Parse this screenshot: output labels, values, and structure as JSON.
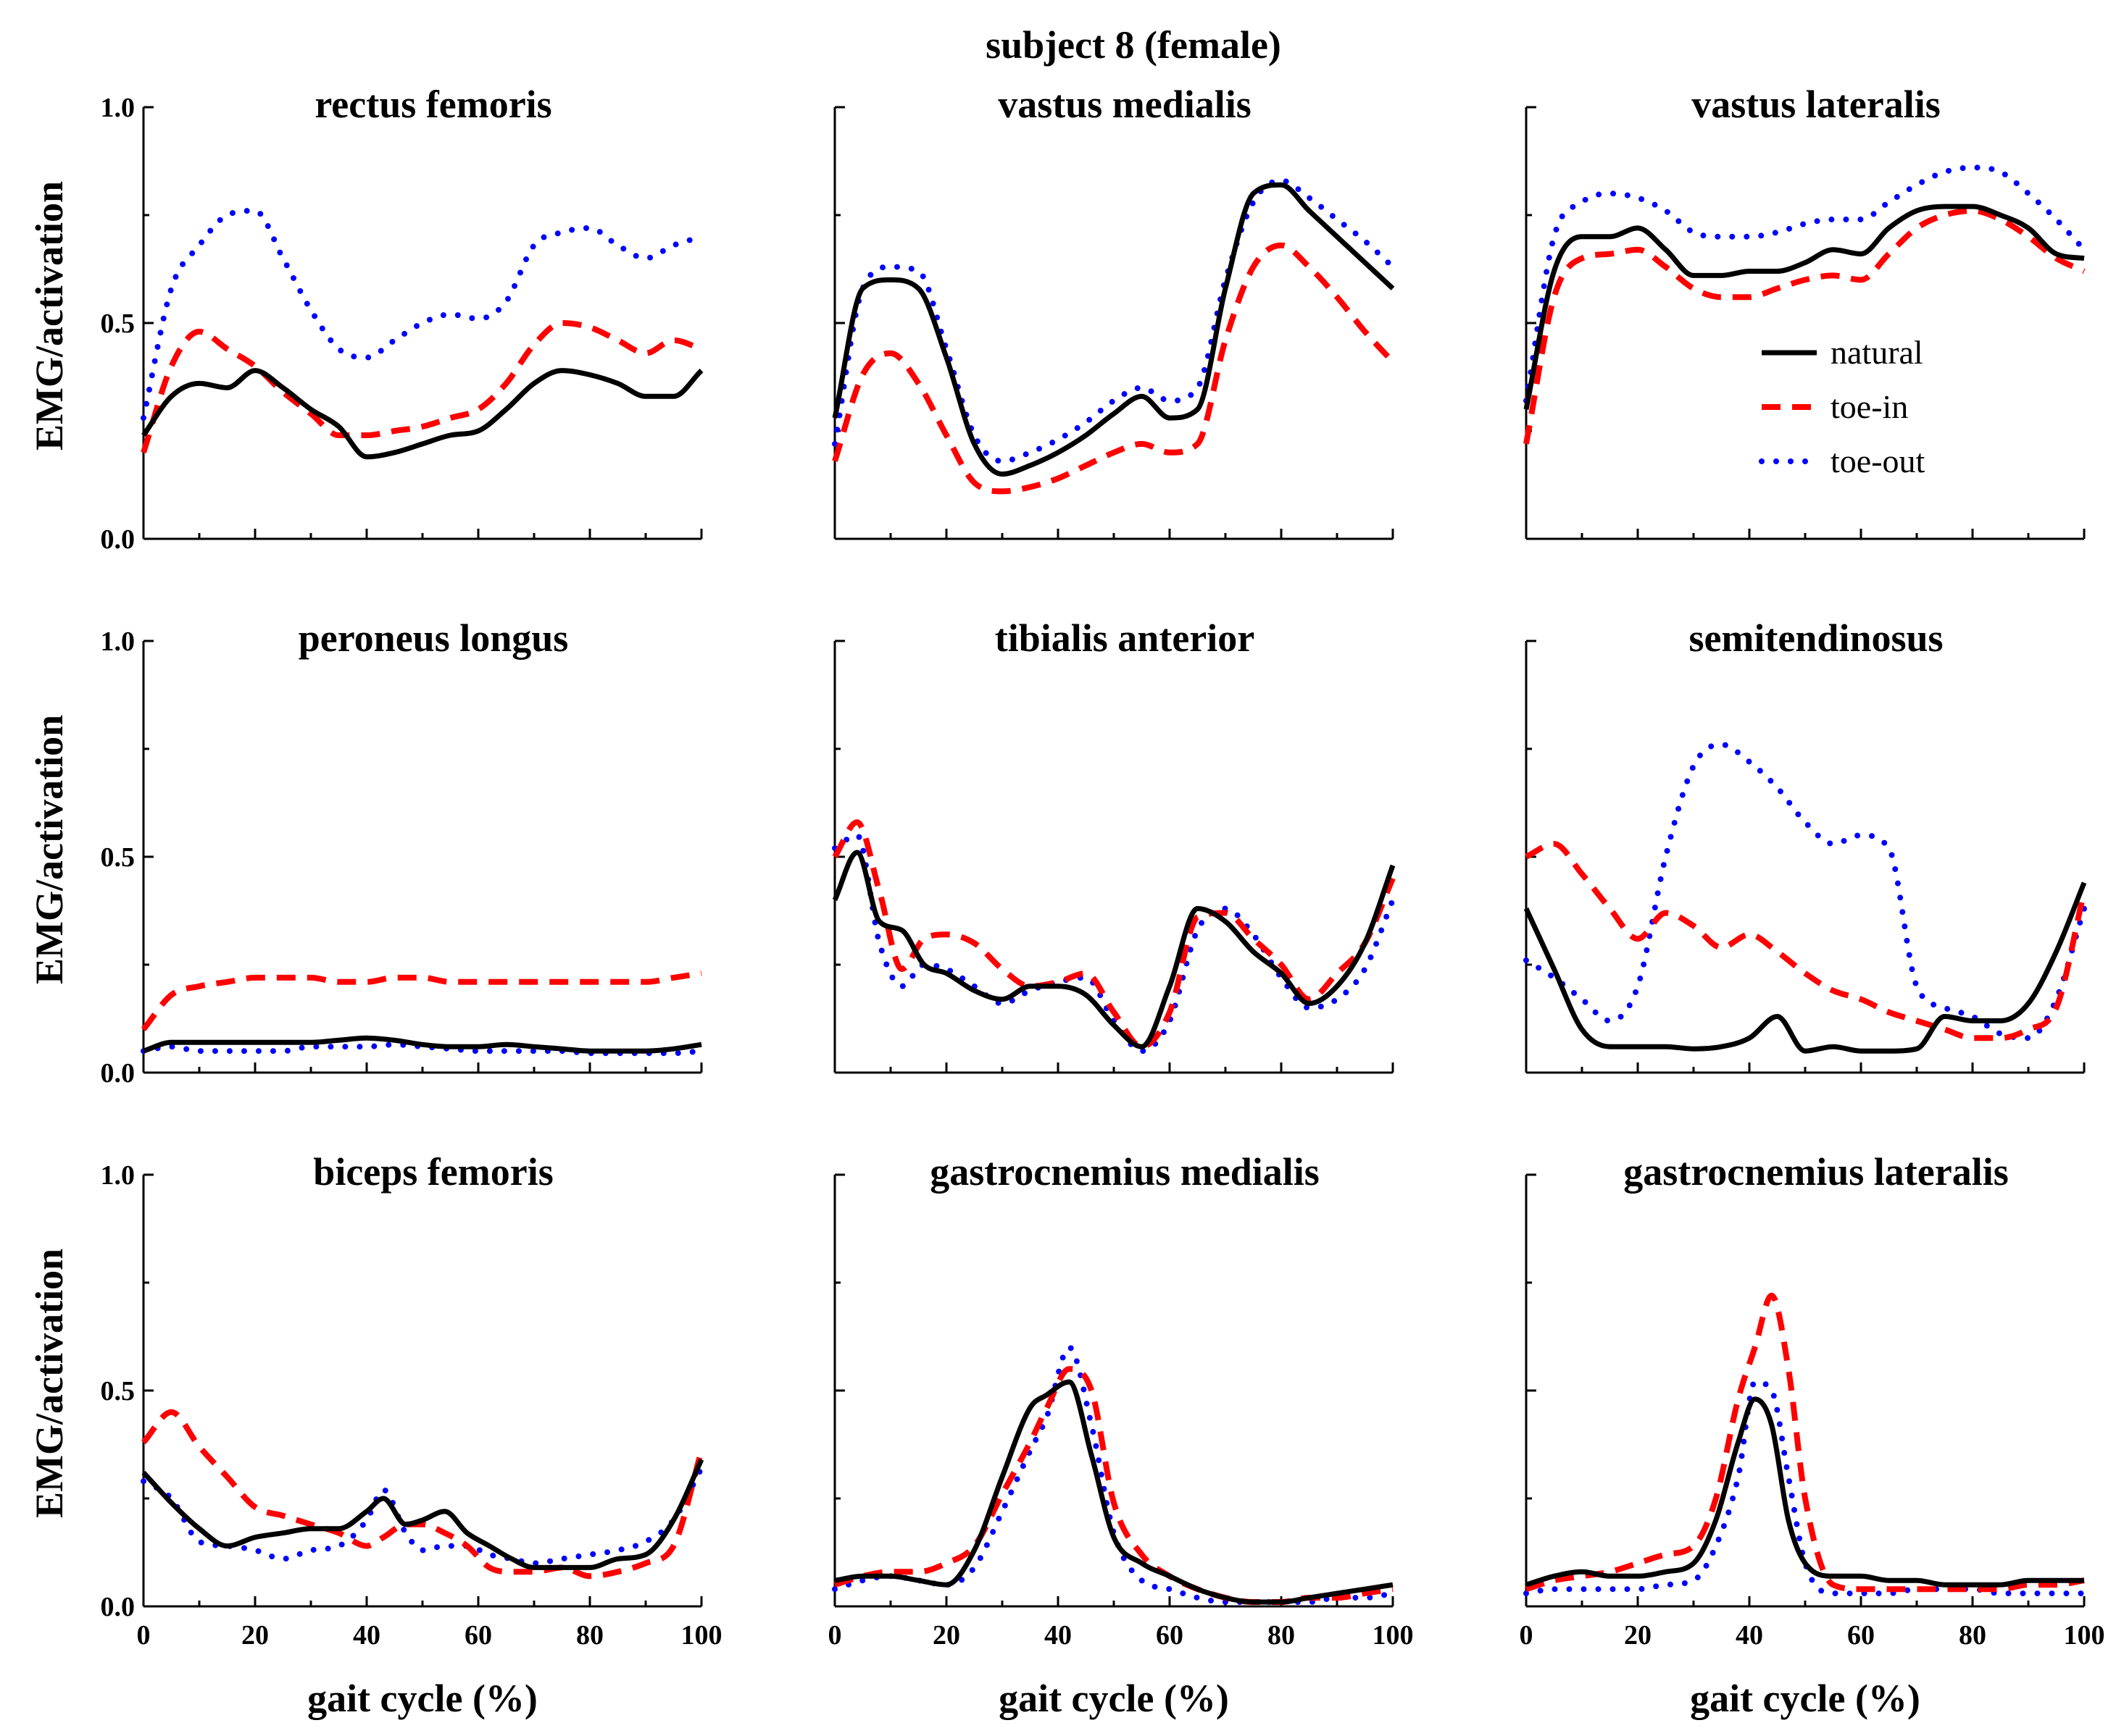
{
  "figure_title": "subject 8 (female)",
  "y_label": "EMG/activation",
  "x_label": "gait cycle (%)",
  "legend": {
    "placement": "top-right panel (vastus lateralis)",
    "items": [
      {
        "series": "natural",
        "label": "natural"
      },
      {
        "series": "toe-in",
        "label": "toe-in"
      },
      {
        "series": "toe-out",
        "label": "toe-out"
      }
    ]
  },
  "series_styles": {
    "natural": {
      "color": "#000000",
      "dash": "solid"
    },
    "toe-in": {
      "color": "#ff0000",
      "dash": "dashed"
    },
    "toe-out": {
      "color": "#0000ff",
      "dash": "dotted"
    }
  },
  "y_tick_labels": [
    "0.0",
    "0.5",
    "1.0"
  ],
  "x_tick_labels": [
    "0",
    "20",
    "40",
    "60",
    "80",
    "100"
  ],
  "chart_data": [
    {
      "type": "line",
      "title": "rectus femoris",
      "xlabel": "",
      "ylabel": "EMG/activation",
      "xlim": [
        0,
        100
      ],
      "ylim": [
        0,
        1
      ],
      "show_y_ticklabels": true,
      "show_x_ticklabels": false,
      "x": [
        0,
        5,
        10,
        15,
        20,
        25,
        30,
        35,
        40,
        45,
        50,
        55,
        60,
        65,
        70,
        75,
        80,
        85,
        90,
        95,
        100
      ],
      "series": [
        {
          "name": "natural",
          "values": [
            0.24,
            0.33,
            0.36,
            0.35,
            0.39,
            0.35,
            0.3,
            0.26,
            0.19,
            0.2,
            0.22,
            0.24,
            0.25,
            0.3,
            0.36,
            0.39,
            0.38,
            0.36,
            0.33,
            0.33,
            0.39
          ]
        },
        {
          "name": "toe-in",
          "values": [
            0.2,
            0.4,
            0.48,
            0.44,
            0.4,
            0.34,
            0.29,
            0.24,
            0.24,
            0.25,
            0.26,
            0.28,
            0.3,
            0.36,
            0.45,
            0.5,
            0.49,
            0.46,
            0.43,
            0.46,
            0.44
          ]
        },
        {
          "name": "toe-out",
          "values": [
            0.28,
            0.58,
            0.68,
            0.75,
            0.76,
            0.65,
            0.53,
            0.44,
            0.42,
            0.46,
            0.5,
            0.52,
            0.51,
            0.55,
            0.68,
            0.71,
            0.72,
            0.68,
            0.65,
            0.68,
            0.7
          ]
        }
      ]
    },
    {
      "type": "line",
      "title": "vastus medialis",
      "xlabel": "",
      "ylabel": "",
      "xlim": [
        0,
        100
      ],
      "ylim": [
        0,
        1
      ],
      "show_y_ticklabels": false,
      "show_x_ticklabels": false,
      "x": [
        0,
        5,
        10,
        15,
        20,
        25,
        30,
        35,
        40,
        45,
        50,
        55,
        60,
        65,
        70,
        75,
        80,
        85,
        90,
        95,
        100
      ],
      "series": [
        {
          "name": "natural",
          "values": [
            0.28,
            0.58,
            0.6,
            0.58,
            0.42,
            0.22,
            0.15,
            0.17,
            0.2,
            0.24,
            0.29,
            0.33,
            0.28,
            0.3,
            0.58,
            0.8,
            0.82,
            0.76,
            0.7,
            0.64,
            0.58
          ]
        },
        {
          "name": "toe-in",
          "values": [
            0.18,
            0.38,
            0.43,
            0.36,
            0.24,
            0.13,
            0.11,
            0.12,
            0.14,
            0.17,
            0.2,
            0.22,
            0.2,
            0.22,
            0.46,
            0.63,
            0.68,
            0.63,
            0.56,
            0.48,
            0.41
          ]
        },
        {
          "name": "toe-out",
          "values": [
            0.22,
            0.58,
            0.63,
            0.62,
            0.44,
            0.24,
            0.18,
            0.2,
            0.23,
            0.27,
            0.32,
            0.35,
            0.32,
            0.35,
            0.6,
            0.78,
            0.83,
            0.79,
            0.74,
            0.69,
            0.63
          ]
        }
      ]
    },
    {
      "type": "line",
      "title": "vastus lateralis",
      "xlabel": "",
      "ylabel": "",
      "xlim": [
        0,
        100
      ],
      "ylim": [
        0,
        1
      ],
      "show_y_ticklabels": false,
      "show_x_ticklabels": false,
      "x": [
        0,
        5,
        10,
        15,
        20,
        25,
        30,
        35,
        40,
        45,
        50,
        55,
        60,
        65,
        70,
        75,
        80,
        85,
        90,
        95,
        100
      ],
      "series": [
        {
          "name": "natural",
          "values": [
            0.3,
            0.62,
            0.7,
            0.7,
            0.72,
            0.67,
            0.61,
            0.61,
            0.62,
            0.62,
            0.64,
            0.67,
            0.66,
            0.72,
            0.76,
            0.77,
            0.77,
            0.75,
            0.72,
            0.66,
            0.65
          ]
        },
        {
          "name": "toe-in",
          "values": [
            0.22,
            0.56,
            0.65,
            0.66,
            0.67,
            0.63,
            0.58,
            0.56,
            0.56,
            0.58,
            0.6,
            0.61,
            0.6,
            0.66,
            0.72,
            0.75,
            0.76,
            0.74,
            0.7,
            0.65,
            0.62
          ]
        },
        {
          "name": "toe-out",
          "values": [
            0.32,
            0.7,
            0.78,
            0.8,
            0.79,
            0.76,
            0.71,
            0.7,
            0.7,
            0.71,
            0.73,
            0.74,
            0.74,
            0.78,
            0.82,
            0.85,
            0.86,
            0.85,
            0.8,
            0.74,
            0.67
          ]
        }
      ]
    },
    {
      "type": "line",
      "title": "peroneus longus",
      "xlabel": "",
      "ylabel": "EMG/activation",
      "xlim": [
        0,
        100
      ],
      "ylim": [
        0,
        1
      ],
      "show_y_ticklabels": true,
      "show_x_ticklabels": false,
      "x": [
        0,
        5,
        10,
        15,
        20,
        25,
        30,
        35,
        40,
        45,
        50,
        55,
        60,
        65,
        70,
        75,
        80,
        85,
        90,
        95,
        100
      ],
      "series": [
        {
          "name": "natural",
          "values": [
            0.05,
            0.07,
            0.07,
            0.07,
            0.07,
            0.07,
            0.07,
            0.075,
            0.08,
            0.075,
            0.065,
            0.06,
            0.06,
            0.065,
            0.06,
            0.055,
            0.05,
            0.05,
            0.05,
            0.055,
            0.065
          ]
        },
        {
          "name": "toe-in",
          "values": [
            0.1,
            0.18,
            0.2,
            0.21,
            0.22,
            0.22,
            0.22,
            0.21,
            0.21,
            0.22,
            0.22,
            0.21,
            0.21,
            0.21,
            0.21,
            0.21,
            0.21,
            0.21,
            0.21,
            0.22,
            0.23
          ]
        },
        {
          "name": "toe-out",
          "values": [
            0.05,
            0.06,
            0.05,
            0.05,
            0.05,
            0.05,
            0.06,
            0.06,
            0.06,
            0.065,
            0.06,
            0.055,
            0.05,
            0.05,
            0.05,
            0.05,
            0.045,
            0.045,
            0.045,
            0.045,
            0.05
          ]
        }
      ]
    },
    {
      "type": "line",
      "title": "tibialis anterior",
      "xlabel": "",
      "ylabel": "",
      "xlim": [
        0,
        100
      ],
      "ylim": [
        0,
        1
      ],
      "show_y_ticklabels": false,
      "show_x_ticklabels": false,
      "x": [
        0,
        4,
        8,
        12,
        16,
        20,
        25,
        30,
        35,
        40,
        45,
        50,
        55,
        60,
        65,
        70,
        75,
        80,
        85,
        90,
        95,
        100
      ],
      "series": [
        {
          "name": "natural",
          "values": [
            0.4,
            0.51,
            0.35,
            0.33,
            0.25,
            0.23,
            0.19,
            0.17,
            0.2,
            0.2,
            0.18,
            0.11,
            0.06,
            0.2,
            0.38,
            0.35,
            0.28,
            0.23,
            0.16,
            0.2,
            0.3,
            0.48
          ]
        },
        {
          "name": "toe-in",
          "values": [
            0.5,
            0.58,
            0.42,
            0.24,
            0.31,
            0.32,
            0.3,
            0.24,
            0.2,
            0.21,
            0.23,
            0.14,
            0.06,
            0.14,
            0.36,
            0.37,
            0.31,
            0.25,
            0.17,
            0.23,
            0.3,
            0.45
          ]
        },
        {
          "name": "toe-out",
          "values": [
            0.52,
            0.55,
            0.3,
            0.2,
            0.25,
            0.24,
            0.2,
            0.16,
            0.19,
            0.21,
            0.22,
            0.12,
            0.05,
            0.12,
            0.33,
            0.38,
            0.32,
            0.22,
            0.15,
            0.17,
            0.24,
            0.4
          ]
        }
      ]
    },
    {
      "type": "line",
      "title": "semitendinosus",
      "xlabel": "",
      "ylabel": "",
      "xlim": [
        0,
        100
      ],
      "ylim": [
        0,
        1
      ],
      "show_y_ticklabels": false,
      "show_x_ticklabels": false,
      "x": [
        0,
        5,
        10,
        15,
        20,
        25,
        30,
        35,
        40,
        45,
        50,
        55,
        60,
        65,
        70,
        75,
        80,
        85,
        90,
        95,
        100
      ],
      "series": [
        {
          "name": "natural",
          "values": [
            0.38,
            0.24,
            0.1,
            0.06,
            0.06,
            0.06,
            0.055,
            0.06,
            0.08,
            0.13,
            0.05,
            0.06,
            0.05,
            0.05,
            0.055,
            0.13,
            0.12,
            0.12,
            0.16,
            0.28,
            0.44
          ]
        },
        {
          "name": "toe-in",
          "values": [
            0.5,
            0.53,
            0.46,
            0.38,
            0.31,
            0.37,
            0.34,
            0.29,
            0.32,
            0.28,
            0.23,
            0.19,
            0.17,
            0.14,
            0.12,
            0.1,
            0.08,
            0.08,
            0.1,
            0.15,
            0.42
          ]
        },
        {
          "name": "toe-out",
          "values": [
            0.26,
            0.22,
            0.17,
            0.12,
            0.2,
            0.5,
            0.71,
            0.76,
            0.72,
            0.66,
            0.58,
            0.53,
            0.55,
            0.52,
            0.2,
            0.15,
            0.13,
            0.09,
            0.08,
            0.17,
            0.38
          ]
        }
      ]
    },
    {
      "type": "line",
      "title": "biceps femoris",
      "xlabel": "gait cycle (%)",
      "ylabel": "EMG/activation",
      "xlim": [
        0,
        100
      ],
      "ylim": [
        0,
        1
      ],
      "show_y_ticklabels": true,
      "show_x_ticklabels": true,
      "x": [
        0,
        5,
        10,
        15,
        20,
        25,
        30,
        35,
        40,
        43,
        47,
        50,
        54,
        58,
        62,
        66,
        70,
        75,
        80,
        85,
        90,
        95,
        100
      ],
      "series": [
        {
          "name": "natural",
          "values": [
            0.31,
            0.24,
            0.18,
            0.14,
            0.16,
            0.17,
            0.18,
            0.18,
            0.22,
            0.25,
            0.19,
            0.2,
            0.22,
            0.17,
            0.14,
            0.11,
            0.09,
            0.09,
            0.09,
            0.11,
            0.12,
            0.2,
            0.34
          ]
        },
        {
          "name": "toe-in",
          "values": [
            0.38,
            0.45,
            0.37,
            0.3,
            0.23,
            0.21,
            0.19,
            0.17,
            0.14,
            0.16,
            0.19,
            0.19,
            0.17,
            0.14,
            0.09,
            0.08,
            0.08,
            0.09,
            0.07,
            0.08,
            0.1,
            0.14,
            0.36
          ]
        },
        {
          "name": "toe-out",
          "values": [
            0.29,
            0.25,
            0.15,
            0.14,
            0.13,
            0.11,
            0.13,
            0.14,
            0.2,
            0.27,
            0.17,
            0.13,
            0.14,
            0.14,
            0.12,
            0.11,
            0.1,
            0.11,
            0.12,
            0.13,
            0.15,
            0.2,
            0.32
          ]
        }
      ]
    },
    {
      "type": "line",
      "title": "gastrocnemius medialis",
      "xlabel": "gait cycle (%)",
      "ylabel": "",
      "xlim": [
        0,
        100
      ],
      "ylim": [
        0,
        1
      ],
      "show_y_ticklabels": false,
      "show_x_ticklabels": true,
      "x": [
        0,
        5,
        10,
        15,
        20,
        25,
        30,
        35,
        38,
        42,
        46,
        50,
        55,
        60,
        65,
        70,
        75,
        80,
        85,
        90,
        95,
        100
      ],
      "series": [
        {
          "name": "natural",
          "values": [
            0.06,
            0.07,
            0.07,
            0.06,
            0.05,
            0.13,
            0.3,
            0.46,
            0.49,
            0.52,
            0.35,
            0.16,
            0.1,
            0.07,
            0.04,
            0.02,
            0.01,
            0.01,
            0.02,
            0.03,
            0.04,
            0.05
          ]
        },
        {
          "name": "toe-in",
          "values": [
            0.05,
            0.07,
            0.08,
            0.08,
            0.1,
            0.14,
            0.26,
            0.38,
            0.46,
            0.55,
            0.5,
            0.24,
            0.12,
            0.07,
            0.04,
            0.02,
            0.01,
            0.01,
            0.02,
            0.02,
            0.03,
            0.04
          ]
        },
        {
          "name": "toe-out",
          "values": [
            0.04,
            0.06,
            0.07,
            0.06,
            0.05,
            0.09,
            0.22,
            0.36,
            0.44,
            0.6,
            0.42,
            0.17,
            0.06,
            0.04,
            0.02,
            0.01,
            0.01,
            0.01,
            0.01,
            0.02,
            0.02,
            0.03
          ]
        }
      ]
    },
    {
      "type": "line",
      "title": "gastrocnemius lateralis",
      "xlabel": "gait cycle (%)",
      "ylabel": "",
      "xlim": [
        0,
        100
      ],
      "ylim": [
        0,
        1
      ],
      "show_y_ticklabels": false,
      "show_x_ticklabels": true,
      "x": [
        0,
        5,
        10,
        15,
        20,
        25,
        30,
        34,
        38,
        41,
        44,
        47,
        50,
        55,
        60,
        65,
        70,
        75,
        80,
        85,
        90,
        95,
        100
      ],
      "series": [
        {
          "name": "natural",
          "values": [
            0.05,
            0.07,
            0.08,
            0.07,
            0.07,
            0.08,
            0.1,
            0.2,
            0.38,
            0.48,
            0.42,
            0.2,
            0.1,
            0.07,
            0.07,
            0.06,
            0.06,
            0.05,
            0.05,
            0.05,
            0.06,
            0.06,
            0.06
          ]
        },
        {
          "name": "toe-in",
          "values": [
            0.04,
            0.06,
            0.07,
            0.08,
            0.1,
            0.12,
            0.14,
            0.25,
            0.48,
            0.6,
            0.72,
            0.55,
            0.25,
            0.05,
            0.04,
            0.04,
            0.04,
            0.04,
            0.04,
            0.04,
            0.05,
            0.05,
            0.06
          ]
        },
        {
          "name": "toe-out",
          "values": [
            0.03,
            0.04,
            0.04,
            0.04,
            0.04,
            0.05,
            0.06,
            0.14,
            0.3,
            0.52,
            0.5,
            0.3,
            0.1,
            0.03,
            0.03,
            0.03,
            0.04,
            0.04,
            0.04,
            0.03,
            0.03,
            0.03,
            0.03
          ]
        }
      ]
    }
  ]
}
